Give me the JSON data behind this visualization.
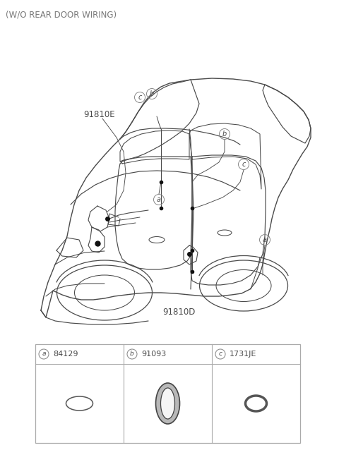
{
  "title": "(W/O REAR DOOR WIRING)",
  "title_color": "#7a7a7a",
  "title_fontsize": 8.5,
  "bg_color": "#ffffff",
  "line_color": "#4a4a4a",
  "label_color": "#4a4a4a",
  "gray_color": "#888888",
  "part_label_91810E": "91810E",
  "part_label_91810D": "91810D",
  "parts_table": [
    {
      "label": "a",
      "part_no": "84129"
    },
    {
      "label": "b",
      "part_no": "91093"
    },
    {
      "label": "c",
      "part_no": "1731JE"
    }
  ]
}
